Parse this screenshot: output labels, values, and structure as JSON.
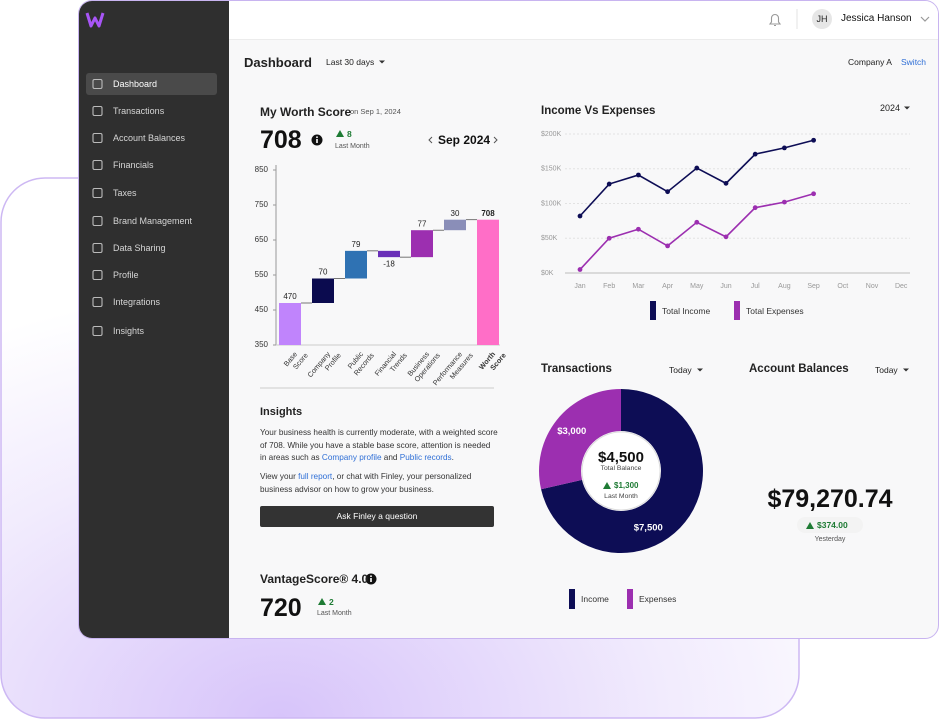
{
  "sidebar": {
    "items": [
      "Dashboard",
      "Transactions",
      "Account Balances",
      "Financials",
      "Taxes",
      "Brand Management",
      "Data Sharing",
      "Profile",
      "Integrations",
      "Insights"
    ]
  },
  "header": {
    "user_initials": "JH",
    "user_name": "Jessica Hanson"
  },
  "toolbar": {
    "title": "Dashboard",
    "period": "Last 30 days",
    "company": "Company A",
    "switch": "Switch"
  },
  "worth_score": {
    "title": "My Worth Score",
    "date": "on Sep 1, 2024",
    "score": 708,
    "change": 8,
    "change_label": "Last Month",
    "month": "Sep 2024",
    "chart": {
      "type": "waterfall",
      "categories": [
        [
          "Base",
          "Score"
        ],
        [
          "Company",
          "Profile"
        ],
        [
          "Public",
          "Records"
        ],
        [
          "Financial",
          "Trends"
        ],
        [
          "Business",
          "Operations"
        ],
        [
          "Performance",
          "Measures"
        ],
        [
          "Worth",
          "Score"
        ]
      ],
      "values": [
        470,
        70,
        79,
        -18,
        77,
        30,
        708
      ],
      "colors": [
        "#c084fc",
        "#0b0b4f",
        "#2f72b3",
        "#6a2fb8",
        "#9c2fb0",
        "#8a8eb8",
        "#ff6ec7"
      ],
      "ylim": [
        350,
        850
      ],
      "yticks": [
        350,
        450,
        550,
        650,
        750,
        850
      ]
    }
  },
  "insights": {
    "title": "Insights",
    "paragraphs": [
      [
        "Your business health is currently moderate, with a weighted score of 708. While you have a stable base score, attention is needed in areas such as ",
        "Company profile",
        " and ",
        "Public records",
        "."
      ],
      [
        "View your ",
        "full report",
        ", or chat with Finley, your personalized business advisor on how to grow your business."
      ]
    ],
    "button": "Ask Finley a question"
  },
  "vantage": {
    "title": "VantageScore® 4.0",
    "score": 720,
    "change": 2,
    "change_label": "Last Month"
  },
  "income_expenses": {
    "title": "Income Vs Expenses",
    "year": "2024",
    "chart": {
      "type": "line",
      "categories": [
        "Jan",
        "Feb",
        "Mar",
        "Apr",
        "May",
        "Jun",
        "Jul",
        "Aug",
        "Sep",
        "Oct",
        "Nov",
        "Dec"
      ],
      "series": [
        {
          "name": "Total Income",
          "color": "#0d0d55",
          "values": [
            82,
            128,
            141,
            117,
            151,
            129,
            171,
            180,
            191,
            null,
            null,
            null
          ]
        },
        {
          "name": "Total Expenses",
          "color": "#9c2fb0",
          "values": [
            5,
            50,
            63,
            39,
            73,
            52,
            94,
            102,
            114,
            null,
            null,
            null
          ]
        }
      ],
      "ylim": [
        0,
        200
      ],
      "yticks": [
        {
          "value": 0,
          "label": "$0K"
        },
        {
          "value": 50,
          "label": "$50K"
        },
        {
          "value": 100,
          "label": "$100K"
        },
        {
          "value": 150,
          "label": "$150K"
        },
        {
          "value": 200,
          "label": "$200K"
        }
      ],
      "grid": true
    }
  },
  "transactions": {
    "title": "Transactions",
    "period": "Today",
    "chart": {
      "type": "donut",
      "categories": [
        "Income",
        "Expenses"
      ],
      "values": [
        7500,
        3000
      ],
      "value_labels": [
        "$7,500",
        "$3,000"
      ],
      "colors": [
        "#0d0d55",
        "#9c2fb0"
      ]
    },
    "center": {
      "total": "$4,500",
      "label": "Total Balance",
      "change": "$1,300",
      "change_label": "Last Month"
    }
  },
  "account_balances": {
    "title": "Account Balances",
    "period": "Today",
    "balance": "$79,270.74",
    "change": "$374.00",
    "change_label": "Yesterday"
  }
}
